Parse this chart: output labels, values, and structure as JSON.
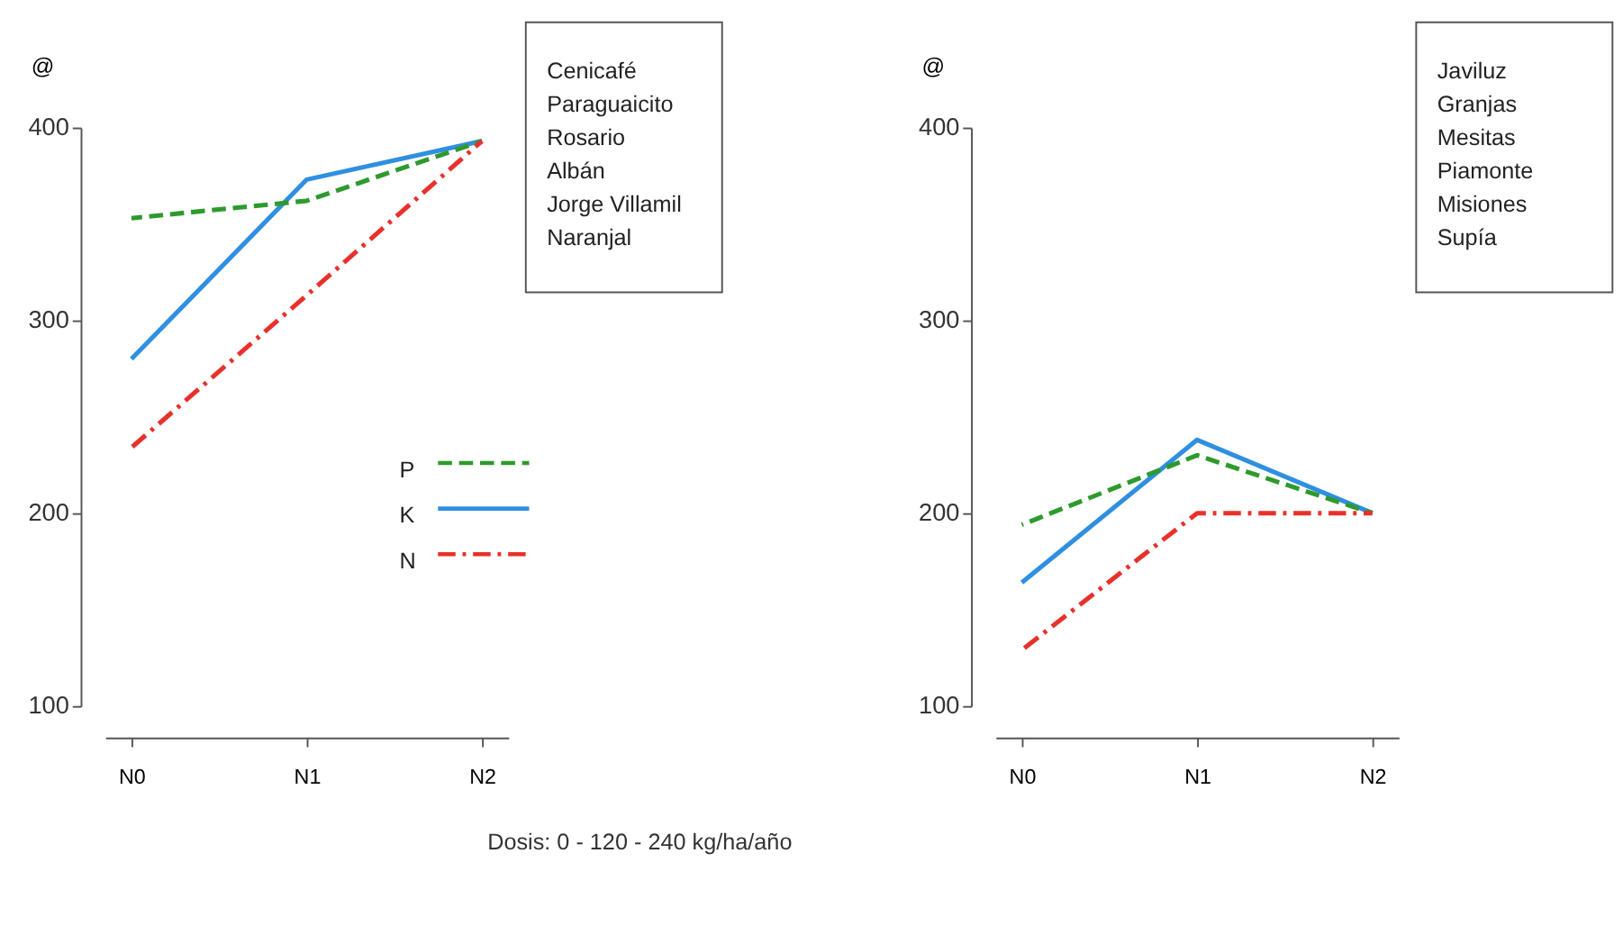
{
  "chart_data": [
    {
      "type": "line",
      "ylabel": "@",
      "xlabel": "Dosis: 0 - 120 - 240 kg/ha/año",
      "categories": [
        "N0",
        "N1",
        "N2"
      ],
      "ylim": [
        100,
        400
      ],
      "yticks": [
        100,
        200,
        300,
        400
      ],
      "grid": false,
      "legend": "right",
      "annotations": [
        "Cenicafé",
        "Paraguaicito",
        "Rosario",
        "Albán",
        "Jorge Villamil",
        "Naranjal"
      ],
      "series": [
        {
          "name": "P",
          "color": "#2e9a2e",
          "line_style": "dashed",
          "values": [
            353,
            362,
            393
          ]
        },
        {
          "name": "K",
          "color": "#2f8fe0",
          "line_style": "solid",
          "values": [
            280,
            373,
            393
          ]
        },
        {
          "name": "N",
          "color": "#e8312a",
          "line_style": "dashdot",
          "values": [
            234,
            313,
            393
          ]
        }
      ]
    },
    {
      "type": "line",
      "ylabel": "@",
      "categories": [
        "N0",
        "N1",
        "N2"
      ],
      "ylim": [
        100,
        400
      ],
      "yticks": [
        100,
        200,
        300,
        400
      ],
      "grid": false,
      "annotations": [
        "Javiluz",
        "Granjas",
        "Mesitas",
        "Piamonte",
        "Misiones",
        "Supía"
      ],
      "series": [
        {
          "color": "#2e9a2e",
          "line_style": "dashed",
          "values": [
            194,
            230,
            200
          ]
        },
        {
          "color": "#2f8fe0",
          "line_style": "solid",
          "values": [
            164,
            238,
            200
          ]
        },
        {
          "color": "#e8312a",
          "line_style": "dashdot",
          "values": [
            129,
            200,
            200
          ]
        }
      ]
    }
  ]
}
